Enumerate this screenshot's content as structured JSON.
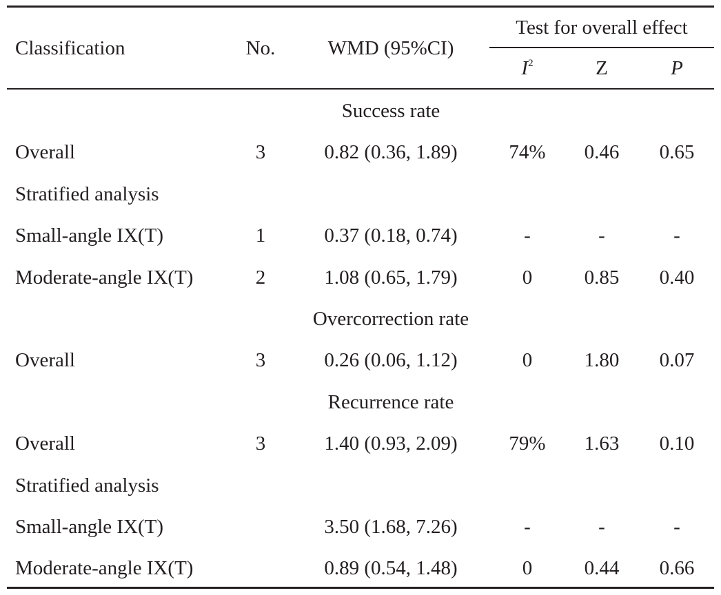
{
  "table": {
    "headers": {
      "classification": "Classification",
      "no": "No.",
      "wmd": "WMD (95%CI)",
      "test_group": "Test for overall effect",
      "i2_base": "I",
      "i2_sup": "2",
      "z": "Z",
      "p": "P"
    },
    "sections": [
      {
        "title": "Success rate",
        "rows": [
          {
            "classification": "Overall",
            "no": "3",
            "wmd": "0.82 (0.36, 1.89)",
            "i2": "74%",
            "z": "0.46",
            "p": "0.65"
          },
          {
            "classification": "Stratified analysis",
            "no": "",
            "wmd": "",
            "i2": "",
            "z": "",
            "p": ""
          },
          {
            "classification": "Small-angle IX(T)",
            "no": "1",
            "wmd": "0.37 (0.18, 0.74)",
            "i2": "-",
            "z": "-",
            "p": "-"
          },
          {
            "classification": "Moderate-angle IX(T)",
            "no": "2",
            "wmd": "1.08 (0.65, 1.79)",
            "i2": "0",
            "z": "0.85",
            "p": "0.40"
          }
        ]
      },
      {
        "title": "Overcorrection rate",
        "rows": [
          {
            "classification": "Overall",
            "no": "3",
            "wmd": "0.26 (0.06, 1.12)",
            "i2": "0",
            "z": "1.80",
            "p": "0.07"
          }
        ]
      },
      {
        "title": "Recurrence rate",
        "rows": [
          {
            "classification": "Overall",
            "no": "3",
            "wmd": "1.40 (0.93, 2.09)",
            "i2": "79%",
            "z": "1.63",
            "p": "0.10"
          },
          {
            "classification": "Stratified analysis",
            "no": "",
            "wmd": "",
            "i2": "",
            "z": "",
            "p": ""
          },
          {
            "classification": "Small-angle IX(T)",
            "no": "",
            "wmd": "3.50 (1.68, 7.26)",
            "i2": "-",
            "z": "-",
            "p": "-"
          },
          {
            "classification": "Moderate-angle IX(T)",
            "no": "",
            "wmd": "0.89 (0.54, 1.48)",
            "i2": "0",
            "z": "0.44",
            "p": "0.66"
          }
        ]
      }
    ]
  }
}
